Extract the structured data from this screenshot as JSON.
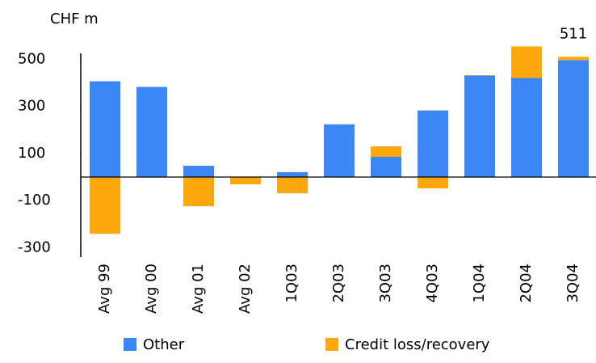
{
  "chart_data": {
    "type": "stacked_bar",
    "y_label": "CHF m",
    "categories": [
      "Avg 99",
      "Avg 00",
      "Avg 01",
      "Avg 02",
      "1Q03",
      "2Q03",
      "3Q03",
      "4Q03",
      "1Q04",
      "2Q04",
      "3Q04"
    ],
    "series": [
      {
        "name": "Other",
        "color": "#3d86f5",
        "values": [
          407,
          383,
          48,
          0,
          21,
          224,
          86,
          283,
          431,
          421,
          497
        ]
      },
      {
        "name": "Credit loss/recovery",
        "color": "#ffa70f",
        "values": [
          -241,
          0,
          -124,
          -31,
          -69,
          0,
          45,
          -48,
          2,
          134,
          14
        ]
      }
    ],
    "annotations": [
      {
        "text": "511",
        "value": 511
      }
    ],
    "ylim": [
      -340,
      560
    ],
    "yticks": [
      -300,
      -100,
      100,
      300,
      500
    ],
    "legend": "bottom"
  }
}
